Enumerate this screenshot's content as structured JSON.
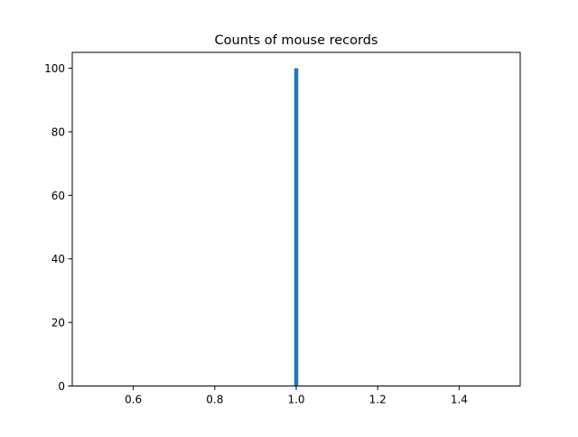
{
  "chart_data": {
    "type": "bar",
    "title": "Counts of mouse records",
    "xlabel": "",
    "ylabel": "",
    "xlim": [
      0.45,
      1.55
    ],
    "ylim": [
      0,
      105
    ],
    "x_ticks": [
      0.6,
      0.8,
      1.0,
      1.2,
      1.4
    ],
    "x_tick_labels": [
      "0.6",
      "0.8",
      "1.0",
      "1.2",
      "1.4"
    ],
    "y_ticks": [
      0,
      20,
      40,
      60,
      80,
      100
    ],
    "y_tick_labels": [
      "0",
      "20",
      "40",
      "60",
      "80",
      "100"
    ],
    "bars": [
      {
        "x_start": 0.995,
        "x_end": 1.005,
        "value": 100
      }
    ],
    "bar_color": "#1f77b4",
    "grid": false,
    "legend": "none"
  }
}
